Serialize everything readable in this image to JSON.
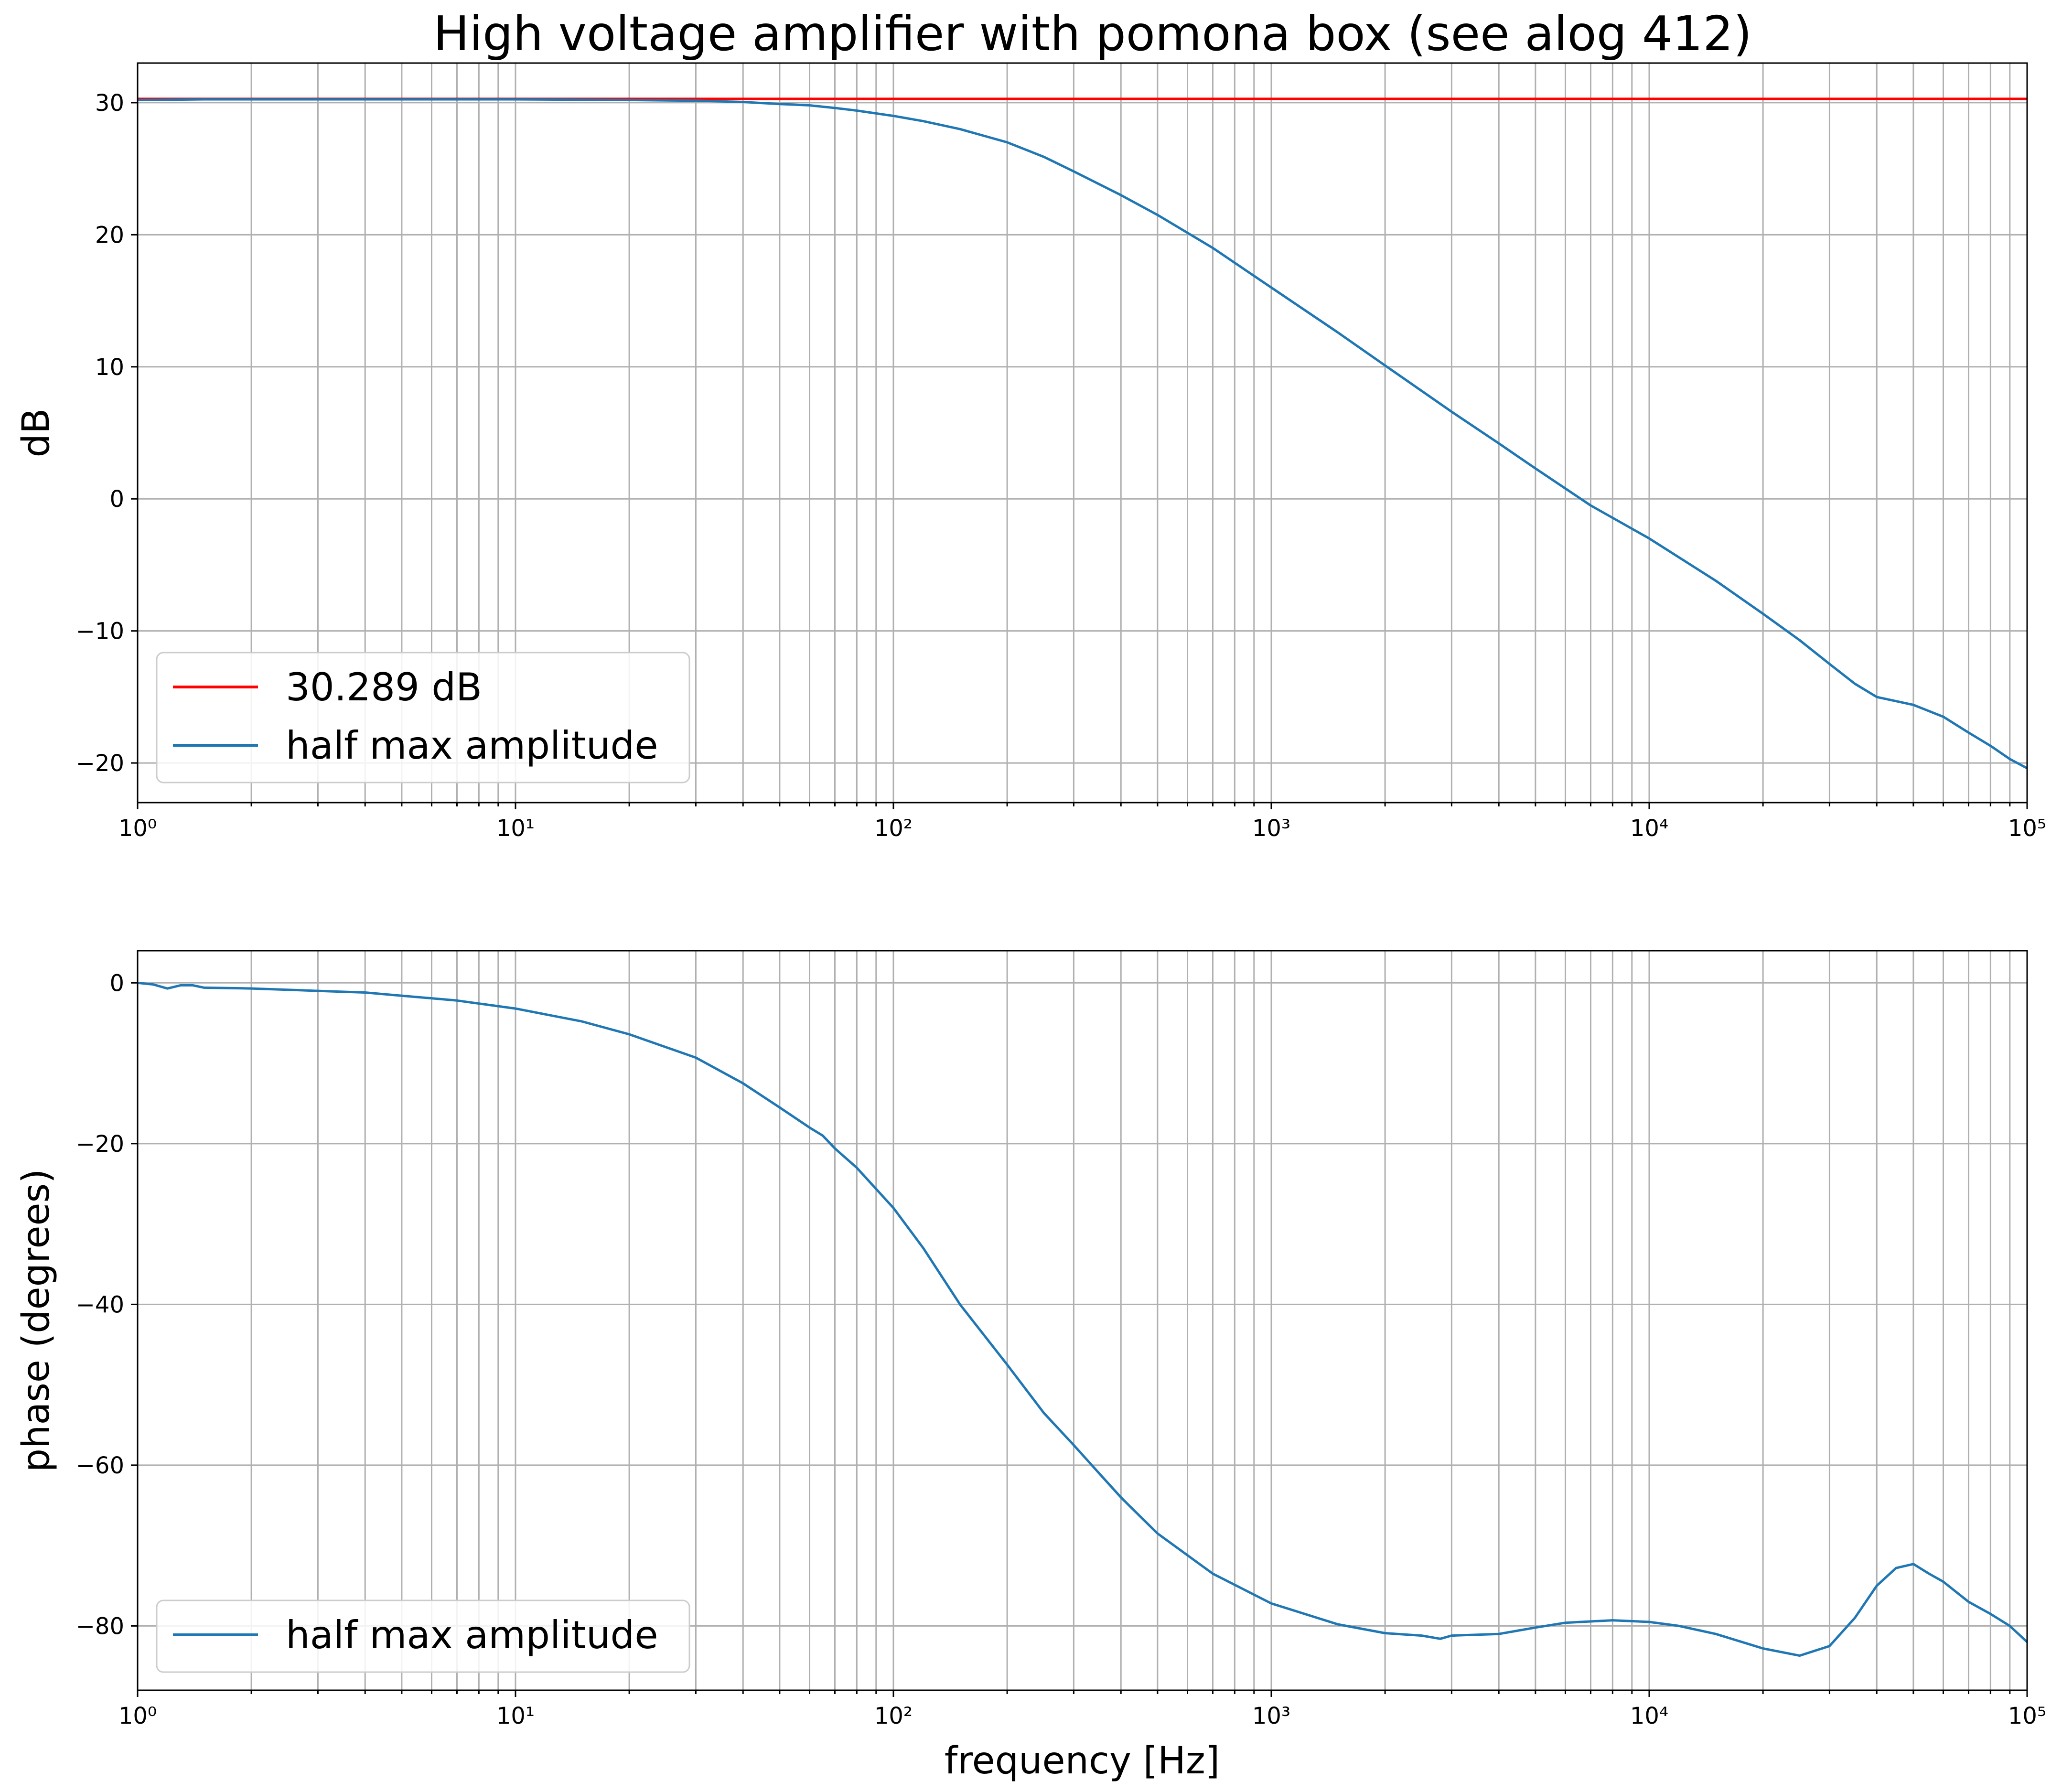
{
  "chart_data": [
    {
      "type": "line",
      "title": "High voltage amplifier with pomona box (see alog 412)",
      "xlabel": "",
      "ylabel": "dB",
      "xscale": "log",
      "xlim": [
        1,
        100000
      ],
      "ylim": [
        -23,
        33
      ],
      "xticks": [
        1,
        10,
        100,
        1000,
        10000,
        100000
      ],
      "yticks": [
        -20,
        -10,
        0,
        10,
        20,
        30
      ],
      "ytick_labels": [
        "−20",
        "−10",
        "0",
        "10",
        "20",
        "30"
      ],
      "grid": "on (major and minor)",
      "legend_position": "lower-left",
      "series": [
        {
          "name": "30.289 dB",
          "color": "#ff0000",
          "x": [
            1,
            100000
          ],
          "y": [
            30.289,
            30.289
          ]
        },
        {
          "name": "half max amplitude",
          "color": "#1f77b4",
          "x": [
            1,
            1.5,
            2,
            3,
            5,
            10,
            20,
            30,
            40,
            50,
            60,
            70,
            80,
            100,
            120,
            150,
            200,
            250,
            300,
            400,
            500,
            700,
            1000,
            1500,
            2000,
            3000,
            4000,
            5000,
            7000,
            10000,
            15000,
            20000,
            25000,
            30000,
            35000,
            40000,
            50000,
            60000,
            70000,
            80000,
            90000,
            100000
          ],
          "y": [
            30.2,
            30.25,
            30.25,
            30.25,
            30.25,
            30.25,
            30.2,
            30.15,
            30.05,
            29.9,
            29.8,
            29.6,
            29.4,
            29.0,
            28.6,
            28.0,
            27.0,
            25.9,
            24.8,
            23.0,
            21.5,
            19.0,
            16.0,
            12.6,
            10.1,
            6.6,
            4.2,
            2.3,
            -0.5,
            -3.0,
            -6.2,
            -8.7,
            -10.7,
            -12.5,
            -14.0,
            -15.0,
            -15.6,
            -16.5,
            -17.7,
            -18.7,
            -19.7,
            -20.4
          ]
        }
      ]
    },
    {
      "type": "line",
      "title": "",
      "xlabel": "frequency [Hz]",
      "ylabel": "phase (degrees)",
      "xscale": "log",
      "xlim": [
        1,
        100000
      ],
      "ylim": [
        -88,
        4
      ],
      "xticks": [
        1,
        10,
        100,
        1000,
        10000,
        100000
      ],
      "yticks": [
        -80,
        -60,
        -40,
        -20,
        0
      ],
      "ytick_labels": [
        "−80",
        "−60",
        "−40",
        "−20",
        "0"
      ],
      "grid": "on (major and minor)",
      "legend_position": "lower-left",
      "series": [
        {
          "name": "half max amplitude",
          "color": "#1f77b4",
          "x": [
            1,
            1.1,
            1.2,
            1.3,
            1.4,
            1.5,
            2,
            3,
            4,
            5,
            7,
            10,
            15,
            20,
            30,
            40,
            50,
            60,
            65,
            70,
            80,
            100,
            120,
            150,
            200,
            250,
            300,
            350,
            400,
            420,
            500,
            700,
            1000,
            1500,
            2000,
            2500,
            2800,
            3000,
            4000,
            5000,
            6000,
            8000,
            10000,
            12000,
            15000,
            20000,
            25000,
            30000,
            35000,
            40000,
            45000,
            50000,
            55000,
            60000,
            70000,
            80000,
            90000,
            100000
          ],
          "y": [
            0,
            -0.2,
            -0.7,
            -0.3,
            -0.3,
            -0.6,
            -0.7,
            -1.0,
            -1.2,
            -1.6,
            -2.2,
            -3.2,
            -4.8,
            -6.4,
            -9.3,
            -12.5,
            -15.5,
            -18.0,
            -19.0,
            -20.6,
            -23.0,
            -28.0,
            -33.0,
            -40.0,
            -47.5,
            -53.5,
            -57.5,
            -61.0,
            -64.0,
            -65.0,
            -68.5,
            -73.5,
            -77.2,
            -79.8,
            -80.9,
            -81.2,
            -81.6,
            -81.2,
            -81.0,
            -80.2,
            -79.6,
            -79.3,
            -79.5,
            -80.0,
            -81.0,
            -82.8,
            -83.7,
            -82.5,
            -79.0,
            -75.0,
            -72.8,
            -72.3,
            -73.5,
            -74.5,
            -77.0,
            -78.5,
            -80.0,
            -82.0
          ]
        }
      ]
    }
  ]
}
